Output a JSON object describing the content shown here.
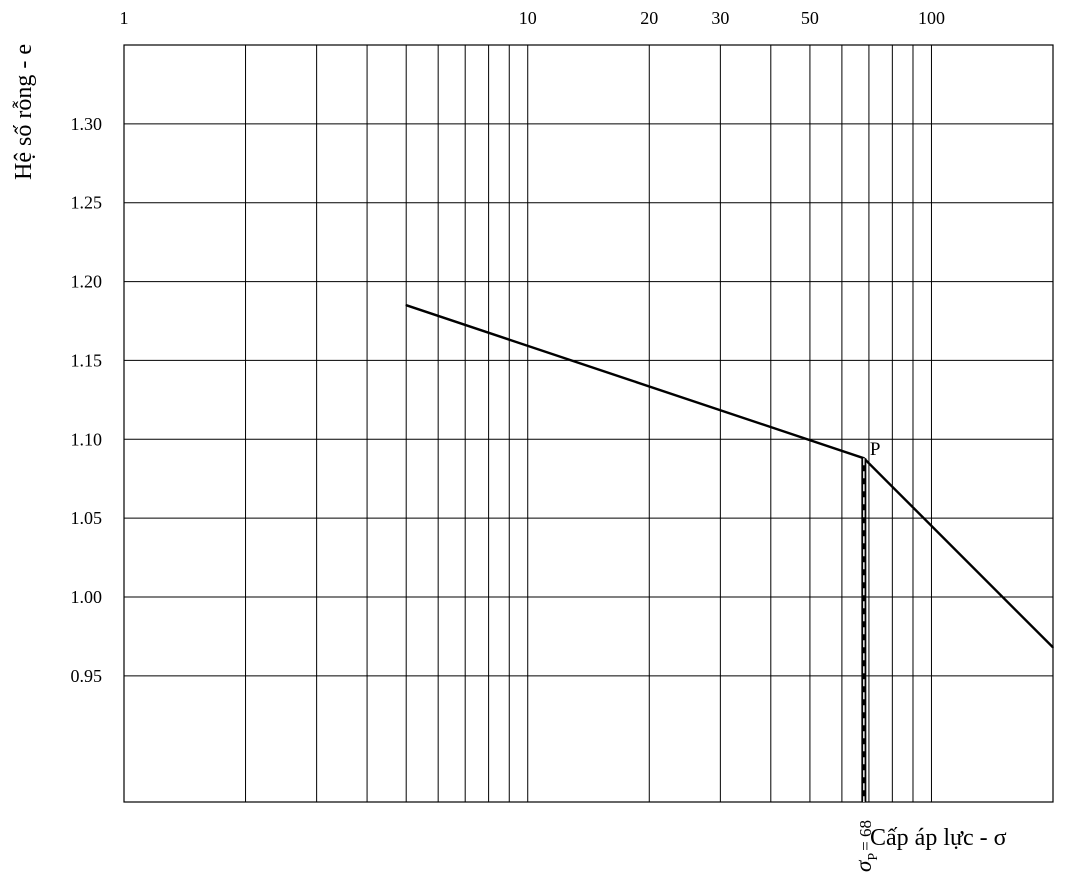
{
  "chart_data": {
    "type": "line",
    "title": "",
    "xlabel": "Cấp áp lực - σ",
    "ylabel": "Hệ số rỗng - e",
    "x_scale": "log",
    "xlim": [
      1,
      200
    ],
    "ylim": [
      0.87,
      1.35
    ],
    "x_tick_labels": [
      {
        "value": 1,
        "label": "1"
      },
      {
        "value": 10,
        "label": "10"
      },
      {
        "value": 20,
        "label": "20"
      },
      {
        "value": 30,
        "label": "30"
      },
      {
        "value": 50,
        "label": "50"
      },
      {
        "value": 100,
        "label": "100"
      }
    ],
    "x_gridlines": [
      1,
      2,
      3,
      4,
      5,
      6,
      7,
      8,
      9,
      10,
      20,
      30,
      40,
      50,
      60,
      70,
      80,
      90,
      100,
      200
    ],
    "y_ticks": [
      {
        "value": 0.95,
        "label": "0.95"
      },
      {
        "value": 1.0,
        "label": "1.00"
      },
      {
        "value": 1.05,
        "label": "1.05"
      },
      {
        "value": 1.1,
        "label": "1.10"
      },
      {
        "value": 1.15,
        "label": "1.15"
      },
      {
        "value": 1.2,
        "label": "1.20"
      },
      {
        "value": 1.25,
        "label": "1.25"
      },
      {
        "value": 1.3,
        "label": "1.30"
      }
    ],
    "grid": true,
    "series": [
      {
        "points": [
          [
            5,
            1.185
          ],
          [
            68,
            1.088
          ],
          [
            200,
            0.968
          ]
        ]
      }
    ],
    "annotations": {
      "point_label": "P",
      "point": [
        68,
        1.088
      ],
      "sigma_p_value": 68,
      "sigma_p_symbol": "σ",
      "sigma_p_subscript": "P",
      "sigma_p_suffix": "= 68"
    }
  }
}
